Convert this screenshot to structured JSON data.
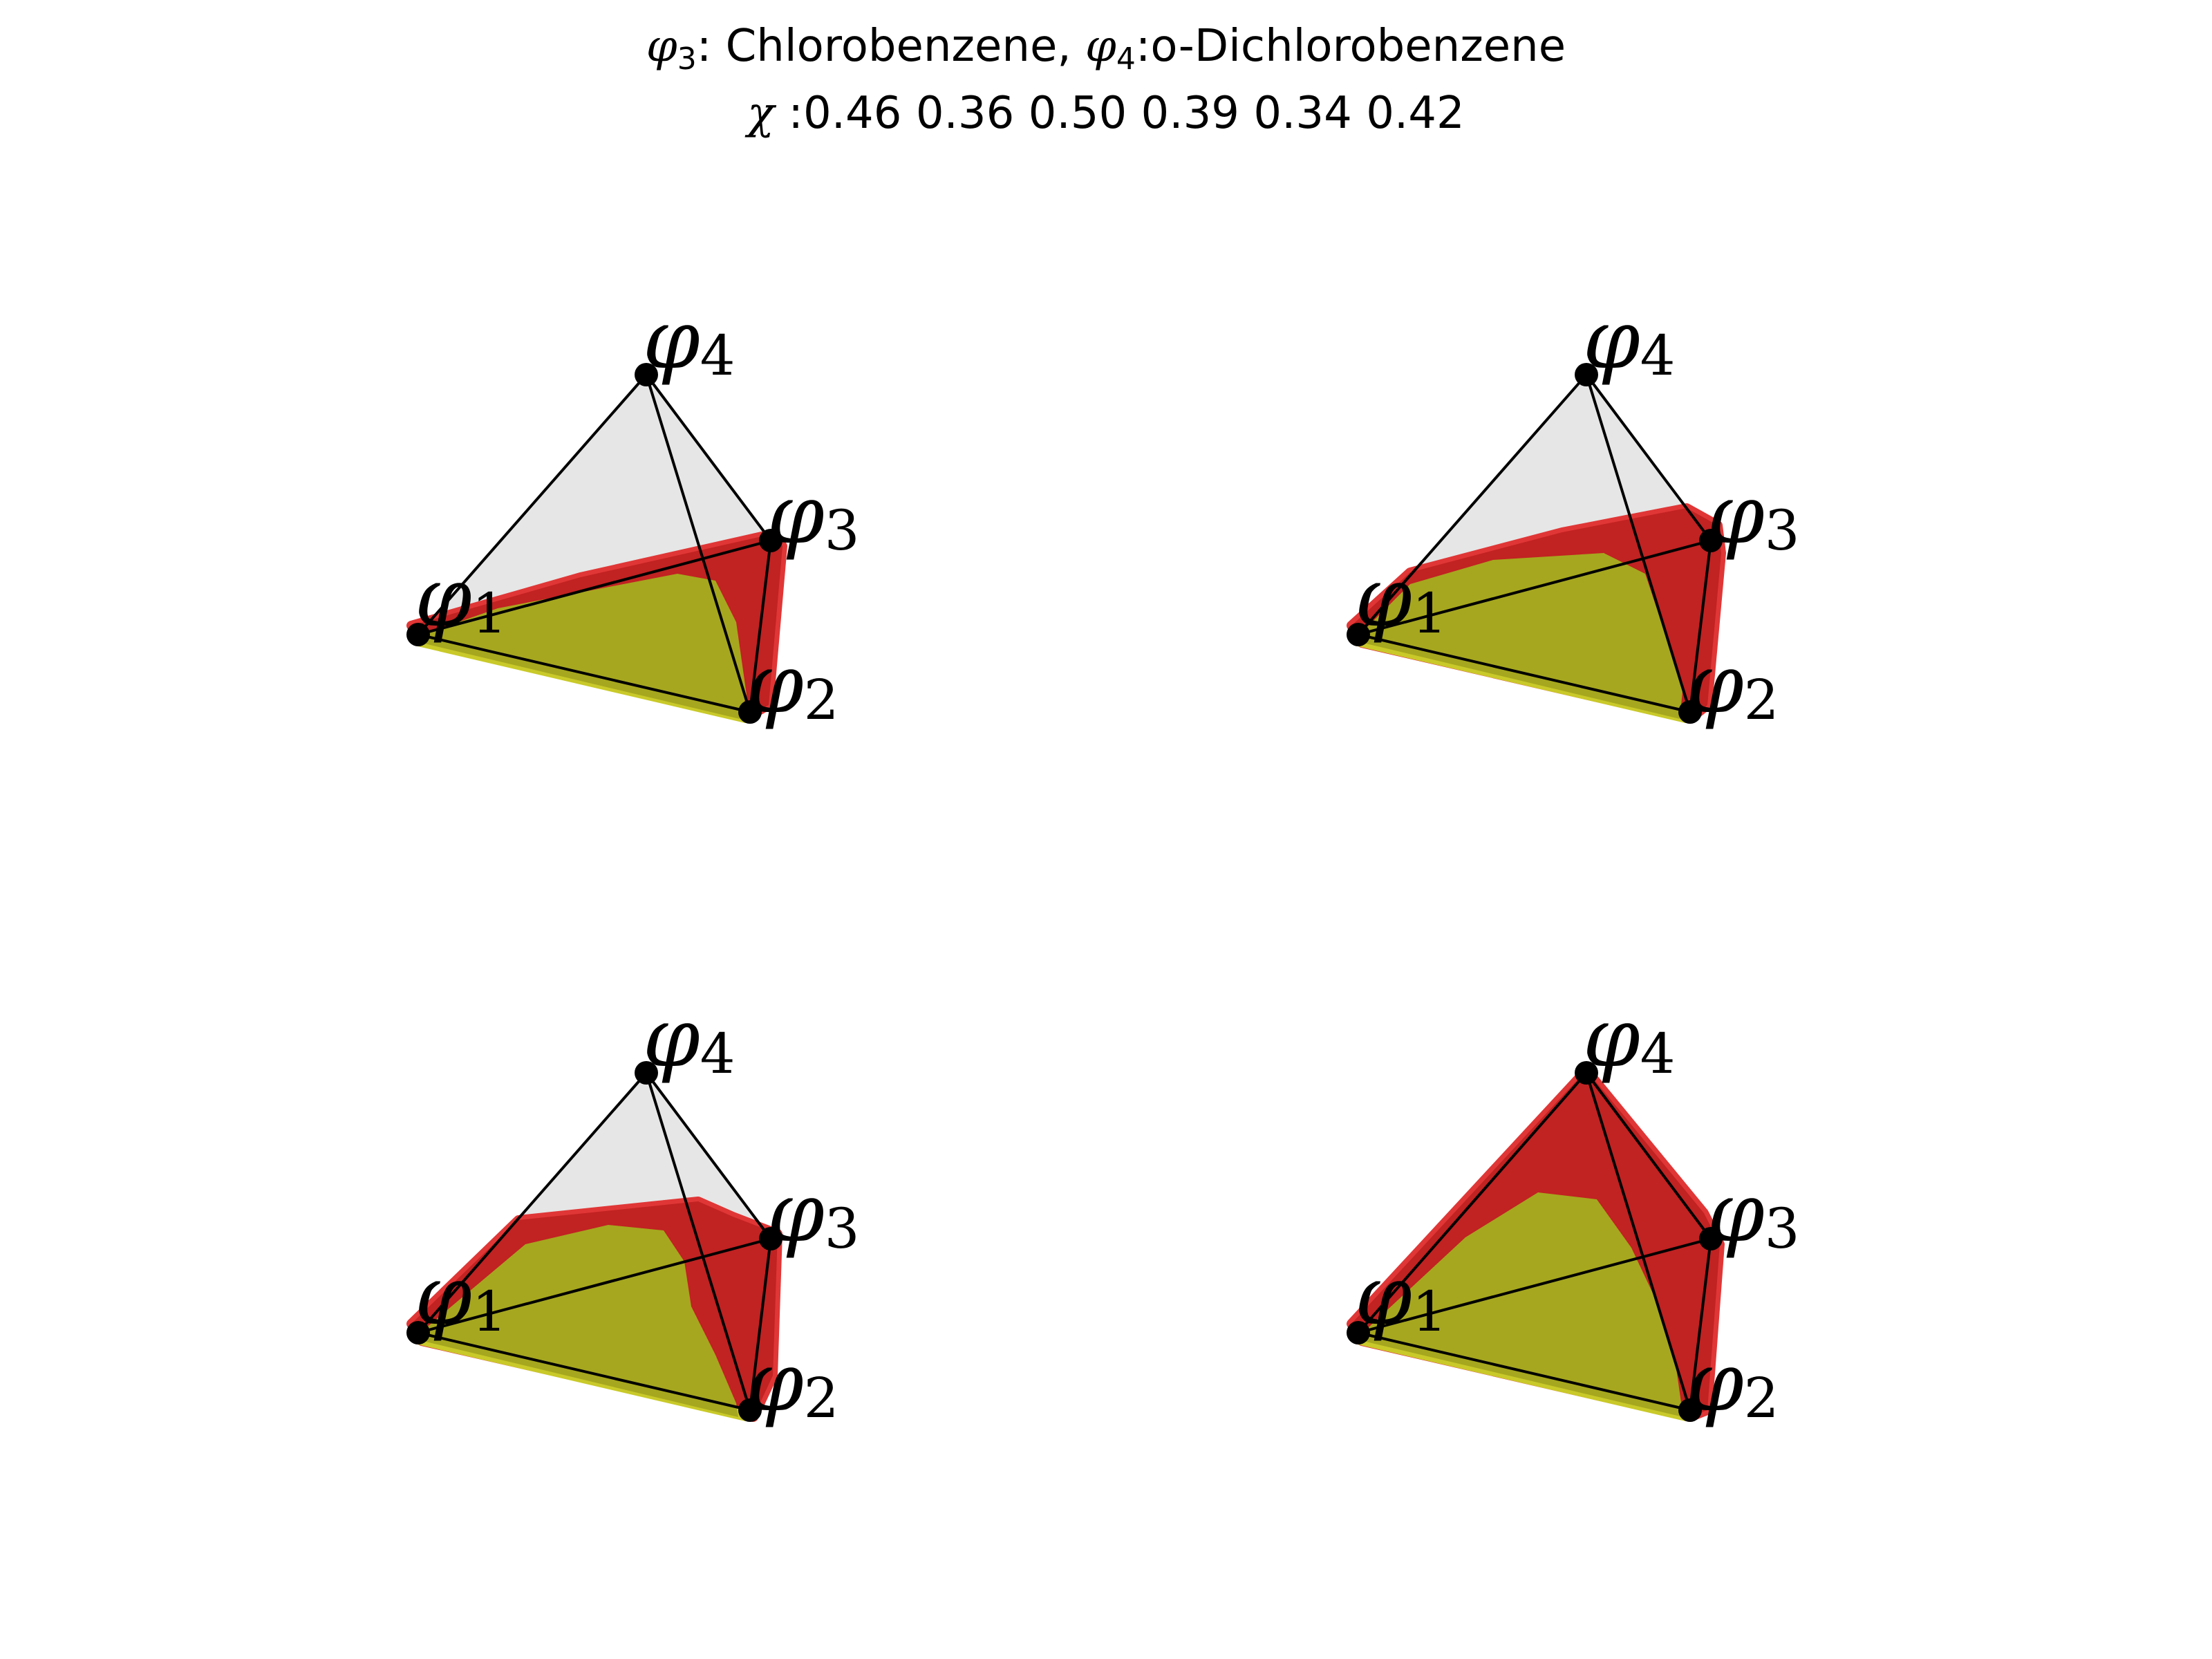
{
  "title": {
    "line1": [
      {
        "t": "φ",
        "sym": true
      },
      {
        "t": "3",
        "sub": true
      },
      {
        "t": ":  Chlorobenzene, "
      },
      {
        "t": "φ",
        "sym": true
      },
      {
        "t": "4",
        "sub": true
      },
      {
        "t": ":o-Dichlorobenzene"
      }
    ],
    "line2": [
      {
        "t": "χ",
        "sym": true
      },
      {
        "t": " :0.46 0.36 0.50 0.39 0.34 0.42"
      }
    ]
  },
  "vertex_labels": {
    "phi1": {
      "symbol": "φ",
      "sub": "1"
    },
    "phi2": {
      "symbol": "φ",
      "sub": "2"
    },
    "phi3": {
      "symbol": "φ",
      "sub": "3"
    },
    "phi4": {
      "symbol": "φ",
      "sub": "4"
    }
  },
  "colors": {
    "single_phase": "#a6a71e",
    "single_phase_edge": "#c9c92a",
    "two_phase": "#c12222",
    "two_phase_edge": "#e03636",
    "unreached": "#e6e6e6",
    "vertex": "#000000",
    "edge": "#000000"
  }
}
